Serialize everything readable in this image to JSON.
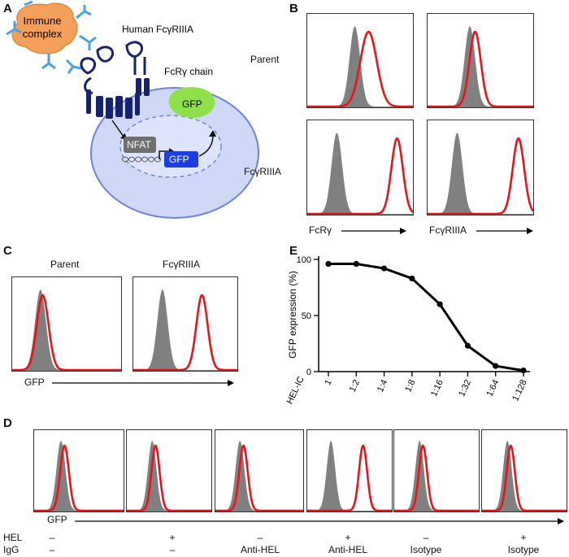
{
  "panels": {
    "A": "A",
    "B": "B",
    "C": "C",
    "D": "D",
    "E": "E"
  },
  "panel_a": {
    "immune_complex": [
      "Immune",
      "complex"
    ],
    "receptor": "Human FcγRIIIA",
    "chain": "FcRγ chain",
    "gfp_protein": "GFP",
    "nfat": "NFAT",
    "gfp_gene": "GFP"
  },
  "panel_b": {
    "row_labels": [
      "Parent",
      "FcγRIIIA"
    ],
    "x_labels": [
      "FcRγ",
      "FcγRIIIA"
    ]
  },
  "panel_c": {
    "col_labels": [
      "Parent",
      "FcγRIIIA"
    ],
    "x_label": "GFP"
  },
  "panel_d": {
    "x_label": "GFP",
    "hel_label": "HEL",
    "igg_label": "IgG",
    "hel": [
      "–",
      "+",
      "–",
      "+",
      "–",
      "+"
    ],
    "igg": [
      "–",
      "–",
      "Anti-HEL",
      "Anti-HEL",
      "Isotype",
      "Isotype"
    ]
  },
  "colors": {
    "stained": "#e8141a",
    "control": "#808080",
    "line": "#000000"
  },
  "chart_data": {
    "type": "line",
    "title": "",
    "xlabel": "HEL-IC",
    "ylabel": "GFP expression (%)",
    "categories": [
      "1",
      "1:2",
      "1:4",
      "1:8",
      "1:16",
      "1:32",
      "1:64",
      "1:128"
    ],
    "values": [
      96,
      96,
      92,
      83,
      60,
      23,
      5,
      1
    ],
    "ylim": [
      0,
      100
    ],
    "yticks": [
      "0",
      "50",
      "100"
    ],
    "grid": false
  }
}
